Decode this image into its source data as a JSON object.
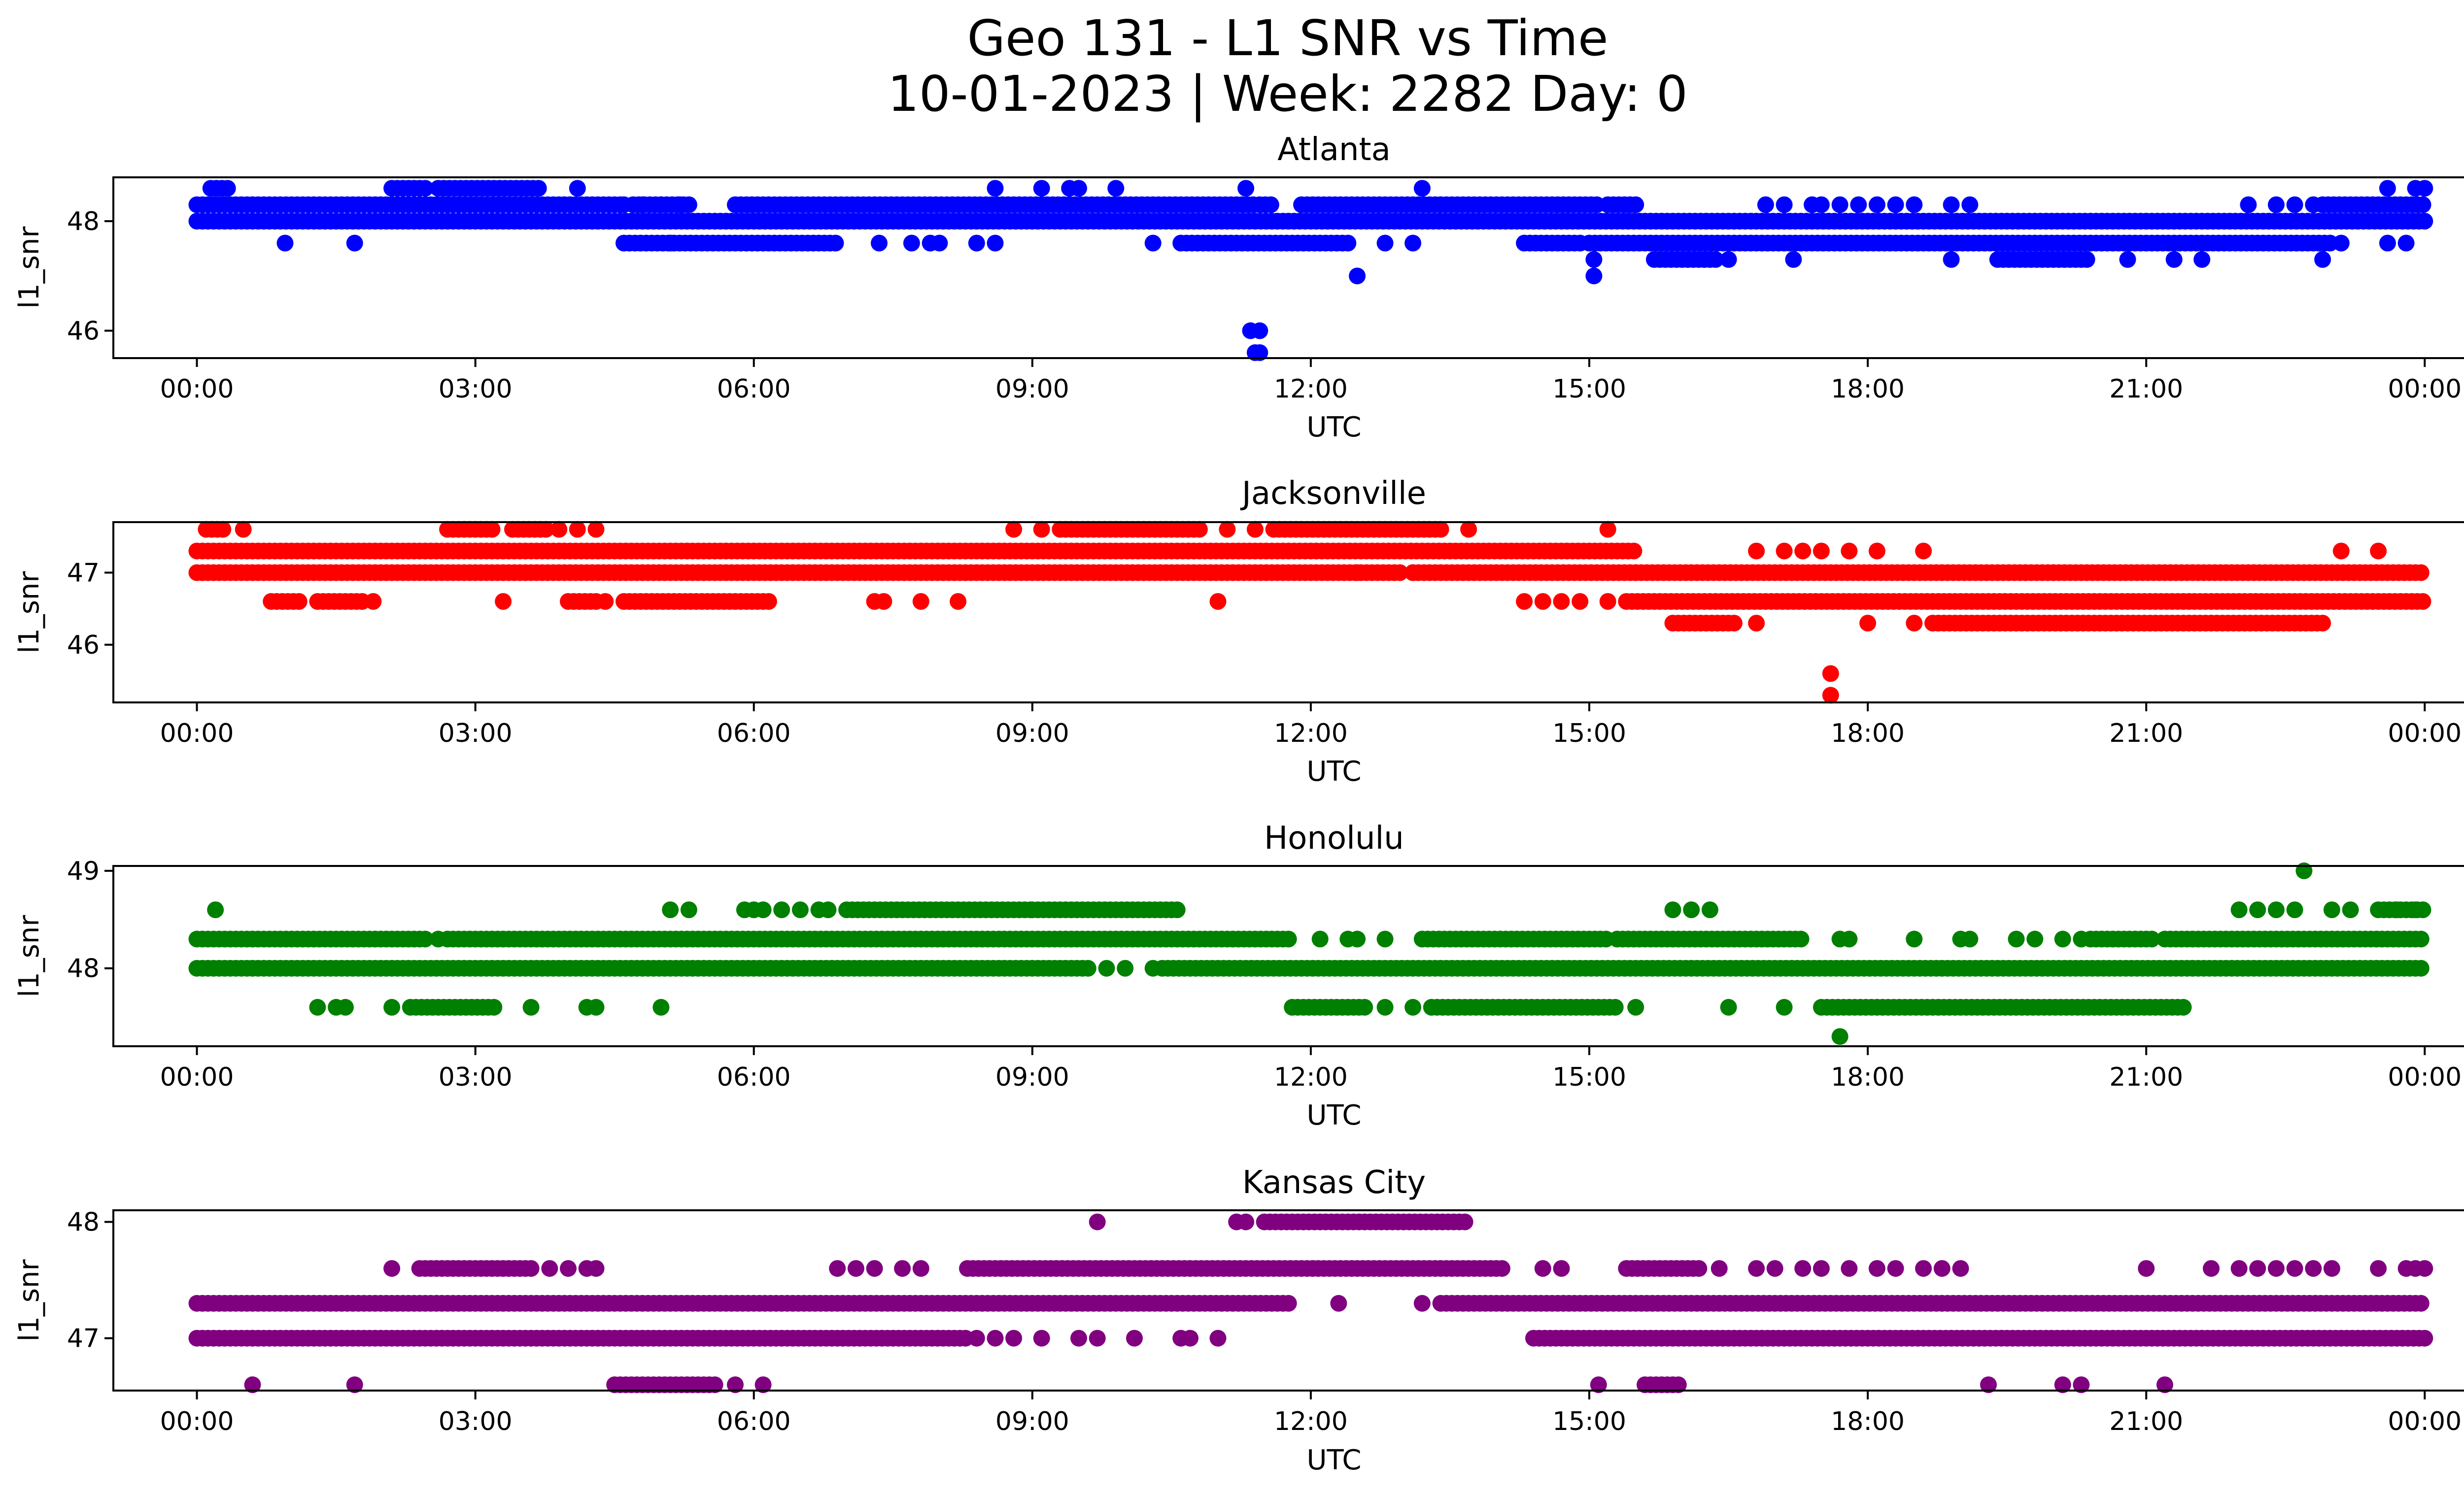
{
  "figure": {
    "title_line1": "Geo 131 - L1 SNR vs Time",
    "title_line2": "10-01-2023 | Week: 2282 Day: 0"
  },
  "chart_data": [
    {
      "type": "scatter",
      "title": "Atlanta",
      "xlabel": "UTC",
      "ylabel": "l1_snr",
      "color": "#0000ff",
      "xlim_hours": [
        -0.9,
        25.4
      ],
      "ylim": [
        45.5,
        48.8
      ],
      "xticks": [
        "00:00",
        "03:00",
        "06:00",
        "09:00",
        "12:00",
        "15:00",
        "18:00",
        "21:00",
        "00:00"
      ],
      "yticks": [
        46,
        48
      ],
      "bands": [
        {
          "y": 48.0,
          "ranges": [
            [
              0,
              24
            ]
          ]
        },
        {
          "y": 48.3,
          "ranges": [
            [
              0,
              4.6
            ],
            [
              4.7,
              5.3
            ],
            [
              5.8,
              11.4
            ],
            [
              11.45,
              11.6
            ],
            [
              11.9,
              15.1
            ],
            [
              15.2,
              15.5
            ],
            [
              22.9,
              24
            ]
          ]
        },
        {
          "y": 47.6,
          "ranges": [
            [
              4.6,
              6.9
            ],
            [
              10.6,
              12.4
            ],
            [
              14.3,
              14.9
            ],
            [
              15.0,
              23.0
            ]
          ]
        },
        {
          "y": 48.6,
          "ranges": [
            [
              0.15,
              0.35
            ],
            [
              2.1,
              2.5
            ],
            [
              2.6,
              3.7
            ]
          ]
        },
        {
          "y": 47.3,
          "ranges": [
            [
              15.7,
              16.4
            ],
            [
              19.4,
              20.4
            ]
          ]
        }
      ],
      "points": [
        [
          0.95,
          47.6
        ],
        [
          1.7,
          47.6
        ],
        [
          4.1,
          48.6
        ],
        [
          4.6,
          48.3
        ],
        [
          4.8,
          48.3
        ],
        [
          5.0,
          48.3
        ],
        [
          5.2,
          48.3
        ],
        [
          5.1,
          47.6
        ],
        [
          7.35,
          47.6
        ],
        [
          7.7,
          47.6
        ],
        [
          7.9,
          47.6
        ],
        [
          8.0,
          47.6
        ],
        [
          8.4,
          47.6
        ],
        [
          8.6,
          47.6
        ],
        [
          8.6,
          48.6
        ],
        [
          9.1,
          48.6
        ],
        [
          9.4,
          48.6
        ],
        [
          9.5,
          48.6
        ],
        [
          9.9,
          48.6
        ],
        [
          10.3,
          47.6
        ],
        [
          11.3,
          48.6
        ],
        [
          11.35,
          46.0
        ],
        [
          11.45,
          46.0
        ],
        [
          11.4,
          45.6
        ],
        [
          11.45,
          45.6
        ],
        [
          12.5,
          47.0
        ],
        [
          12.8,
          47.6
        ],
        [
          13.1,
          47.6
        ],
        [
          13.2,
          48.6
        ],
        [
          15.05,
          47.3
        ],
        [
          15.05,
          47.0
        ],
        [
          16.5,
          47.3
        ],
        [
          16.9,
          48.3
        ],
        [
          17.1,
          48.3
        ],
        [
          17.2,
          47.3
        ],
        [
          17.4,
          48.3
        ],
        [
          17.5,
          48.3
        ],
        [
          17.7,
          48.3
        ],
        [
          17.9,
          48.3
        ],
        [
          18.1,
          48.3
        ],
        [
          18.3,
          48.3
        ],
        [
          18.5,
          48.3
        ],
        [
          18.9,
          48.3
        ],
        [
          18.9,
          47.3
        ],
        [
          19.1,
          48.3
        ],
        [
          20.8,
          47.3
        ],
        [
          21.3,
          47.3
        ],
        [
          21.6,
          47.3
        ],
        [
          22.1,
          48.3
        ],
        [
          22.4,
          48.3
        ],
        [
          22.6,
          48.3
        ],
        [
          22.8,
          48.3
        ],
        [
          22.9,
          47.3
        ],
        [
          23.1,
          47.6
        ],
        [
          23.6,
          48.6
        ],
        [
          23.9,
          48.6
        ],
        [
          24.0,
          48.6
        ],
        [
          23.6,
          47.6
        ],
        [
          23.8,
          47.6
        ]
      ]
    },
    {
      "type": "scatter",
      "title": "Jacksonville",
      "xlabel": "UTC",
      "ylabel": "l1_snr",
      "color": "#ff0000",
      "xlim_hours": [
        -0.9,
        25.4
      ],
      "ylim": [
        45.2,
        47.7
      ],
      "xticks": [
        "00:00",
        "03:00",
        "06:00",
        "09:00",
        "12:00",
        "15:00",
        "18:00",
        "21:00",
        "00:00"
      ],
      "yticks": [
        46,
        47
      ],
      "bands": [
        {
          "y": 47.3,
          "ranges": [
            [
              0,
              15.5
            ]
          ]
        },
        {
          "y": 47.0,
          "ranges": [
            [
              0,
              13.0
            ],
            [
              13.1,
              15.5
            ],
            [
              15.5,
              24
            ]
          ]
        },
        {
          "y": 46.6,
          "ranges": [
            [
              0.8,
              1.1
            ],
            [
              1.3,
              1.8
            ],
            [
              4.0,
              4.3
            ],
            [
              4.6,
              6.2
            ],
            [
              15.4,
              24
            ]
          ]
        },
        {
          "y": 47.6,
          "ranges": [
            [
              0.1,
              0.3
            ],
            [
              2.7,
              3.2
            ],
            [
              3.4,
              3.8
            ],
            [
              9.3,
              10.8
            ],
            [
              11.6,
              13.4
            ]
          ]
        },
        {
          "y": 46.3,
          "ranges": [
            [
              15.9,
              16.6
            ],
            [
              18.7,
              22.9
            ]
          ]
        }
      ],
      "points": [
        [
          0.5,
          47.6
        ],
        [
          1.9,
          46.6
        ],
        [
          3.3,
          46.6
        ],
        [
          3.9,
          47.6
        ],
        [
          4.1,
          47.6
        ],
        [
          4.3,
          47.6
        ],
        [
          4.4,
          46.6
        ],
        [
          7.3,
          46.6
        ],
        [
          7.4,
          46.6
        ],
        [
          7.8,
          46.6
        ],
        [
          8.2,
          46.6
        ],
        [
          8.8,
          47.6
        ],
        [
          9.1,
          47.6
        ],
        [
          11.0,
          46.6
        ],
        [
          11.1,
          47.6
        ],
        [
          11.4,
          47.6
        ],
        [
          12.5,
          47.0
        ],
        [
          13.1,
          47.0
        ],
        [
          13.7,
          47.6
        ],
        [
          14.3,
          46.6
        ],
        [
          14.5,
          46.6
        ],
        [
          14.7,
          46.6
        ],
        [
          14.9,
          46.6
        ],
        [
          15.2,
          46.6
        ],
        [
          15.2,
          47.6
        ],
        [
          16.8,
          46.3
        ],
        [
          16.8,
          47.3
        ],
        [
          17.1,
          47.3
        ],
        [
          17.3,
          47.3
        ],
        [
          17.5,
          47.3
        ],
        [
          17.6,
          45.6
        ],
        [
          17.6,
          45.3
        ],
        [
          17.8,
          47.3
        ],
        [
          18.0,
          46.3
        ],
        [
          18.1,
          47.3
        ],
        [
          18.5,
          46.3
        ],
        [
          18.6,
          47.3
        ],
        [
          19.7,
          47.0
        ],
        [
          20.0,
          47.0
        ],
        [
          23.1,
          47.3
        ],
        [
          23.5,
          47.3
        ]
      ]
    },
    {
      "type": "scatter",
      "title": "Honolulu",
      "xlabel": "UTC",
      "ylabel": "l1_snr",
      "color": "#008000",
      "xlim_hours": [
        -0.9,
        25.4
      ],
      "ylim": [
        47.2,
        49.05
      ],
      "xticks": [
        "00:00",
        "03:00",
        "06:00",
        "09:00",
        "12:00",
        "15:00",
        "18:00",
        "21:00",
        "00:00"
      ],
      "yticks": [
        48,
        49
      ],
      "bands": [
        {
          "y": 48.3,
          "ranges": [
            [
              0,
              2.5
            ],
            [
              2.7,
              11.8
            ],
            [
              13.2,
              15.2
            ],
            [
              15.3,
              17.3
            ],
            [
              20.4,
              21.1
            ],
            [
              21.2,
              24
            ]
          ]
        },
        {
          "y": 48.0,
          "ranges": [
            [
              0,
              9.6
            ],
            [
              10.4,
              24
            ]
          ]
        },
        {
          "y": 47.6,
          "ranges": [
            [
              2.3,
              3.2
            ],
            [
              11.8,
              12.6
            ],
            [
              13.3,
              15.3
            ],
            [
              17.5,
              21.4
            ]
          ]
        },
        {
          "y": 48.6,
          "ranges": [
            [
              7.0,
              9.0
            ],
            [
              9.0,
              10.6
            ],
            [
              23.5,
              24.0
            ]
          ]
        }
      ],
      "points": [
        [
          0.2,
          48.6
        ],
        [
          1.3,
          47.6
        ],
        [
          1.5,
          47.6
        ],
        [
          1.6,
          47.6
        ],
        [
          2.1,
          47.6
        ],
        [
          2.6,
          48.3
        ],
        [
          3.6,
          47.6
        ],
        [
          4.2,
          47.6
        ],
        [
          4.3,
          47.6
        ],
        [
          5.0,
          47.6
        ],
        [
          5.1,
          48.6
        ],
        [
          5.3,
          48.6
        ],
        [
          5.9,
          48.6
        ],
        [
          6.0,
          48.6
        ],
        [
          6.1,
          48.6
        ],
        [
          6.3,
          48.6
        ],
        [
          6.5,
          48.6
        ],
        [
          6.7,
          48.6
        ],
        [
          6.8,
          48.6
        ],
        [
          9.8,
          48.0
        ],
        [
          10.0,
          48.0
        ],
        [
          10.3,
          48.0
        ],
        [
          12.1,
          48.3
        ],
        [
          12.4,
          48.3
        ],
        [
          12.5,
          48.3
        ],
        [
          12.8,
          48.3
        ],
        [
          12.8,
          47.6
        ],
        [
          13.1,
          47.6
        ],
        [
          15.5,
          47.6
        ],
        [
          15.9,
          48.6
        ],
        [
          16.1,
          48.6
        ],
        [
          16.3,
          48.6
        ],
        [
          16.5,
          47.6
        ],
        [
          17.1,
          47.6
        ],
        [
          17.7,
          48.3
        ],
        [
          17.8,
          48.3
        ],
        [
          17.7,
          47.3
        ],
        [
          18.5,
          48.3
        ],
        [
          19.0,
          48.3
        ],
        [
          19.1,
          48.3
        ],
        [
          19.6,
          48.3
        ],
        [
          19.8,
          48.3
        ],
        [
          20.1,
          48.3
        ],
        [
          20.3,
          48.3
        ],
        [
          22.0,
          48.6
        ],
        [
          22.2,
          48.6
        ],
        [
          22.4,
          48.6
        ],
        [
          22.6,
          48.6
        ],
        [
          22.7,
          49.0
        ],
        [
          23.0,
          48.6
        ],
        [
          23.2,
          48.6
        ],
        [
          23.7,
          48.6
        ],
        [
          23.9,
          48.6
        ]
      ]
    },
    {
      "type": "scatter",
      "title": "Kansas City",
      "xlabel": "UTC",
      "ylabel": "l1_snr",
      "color": "#800080",
      "xlim_hours": [
        -0.9,
        25.4
      ],
      "ylim": [
        46.55,
        48.1
      ],
      "xticks": [
        "00:00",
        "03:00",
        "06:00",
        "09:00",
        "12:00",
        "15:00",
        "18:00",
        "21:00",
        "00:00"
      ],
      "yticks": [
        47,
        48
      ],
      "bands": [
        {
          "y": 47.3,
          "ranges": [
            [
              0,
              11.8
            ],
            [
              13.4,
              24
            ]
          ]
        },
        {
          "y": 47.0,
          "ranges": [
            [
              0,
              8.3
            ],
            [
              14.4,
              24
            ]
          ]
        },
        {
          "y": 47.6,
          "ranges": [
            [
              2.4,
              3.6
            ],
            [
              8.3,
              14.1
            ],
            [
              15.4,
              16.2
            ]
          ]
        },
        {
          "y": 48.0,
          "ranges": [
            [
              11.5,
              13.7
            ]
          ]
        },
        {
          "y": 46.6,
          "ranges": [
            [
              4.5,
              5.6
            ],
            [
              15.6,
              16.0
            ]
          ]
        }
      ],
      "points": [
        [
          0.6,
          46.6
        ],
        [
          1.7,
          46.6
        ],
        [
          2.1,
          47.6
        ],
        [
          3.8,
          47.6
        ],
        [
          4.0,
          47.6
        ],
        [
          4.2,
          47.6
        ],
        [
          4.3,
          47.6
        ],
        [
          5.8,
          46.6
        ],
        [
          6.1,
          46.6
        ],
        [
          6.9,
          47.6
        ],
        [
          7.1,
          47.6
        ],
        [
          7.3,
          47.6
        ],
        [
          7.6,
          47.6
        ],
        [
          7.8,
          47.6
        ],
        [
          8.4,
          47.0
        ],
        [
          8.6,
          47.0
        ],
        [
          8.8,
          47.0
        ],
        [
          9.1,
          47.0
        ],
        [
          9.5,
          47.0
        ],
        [
          9.7,
          47.0
        ],
        [
          9.7,
          48.0
        ],
        [
          10.1,
          47.0
        ],
        [
          10.6,
          47.0
        ],
        [
          10.7,
          47.0
        ],
        [
          11.0,
          47.0
        ],
        [
          11.2,
          48.0
        ],
        [
          11.3,
          48.0
        ],
        [
          12.3,
          47.3
        ],
        [
          13.2,
          47.3
        ],
        [
          14.5,
          47.6
        ],
        [
          14.7,
          47.6
        ],
        [
          15.1,
          46.6
        ],
        [
          16.4,
          47.6
        ],
        [
          16.8,
          47.6
        ],
        [
          17.0,
          47.6
        ],
        [
          17.3,
          47.6
        ],
        [
          17.5,
          47.6
        ],
        [
          17.8,
          47.6
        ],
        [
          18.1,
          47.6
        ],
        [
          18.3,
          47.6
        ],
        [
          18.6,
          47.6
        ],
        [
          18.8,
          47.6
        ],
        [
          19.0,
          47.6
        ],
        [
          19.3,
          46.6
        ],
        [
          20.1,
          46.6
        ],
        [
          20.3,
          46.6
        ],
        [
          21.0,
          47.6
        ],
        [
          21.2,
          46.6
        ],
        [
          21.7,
          47.6
        ],
        [
          22.0,
          47.6
        ],
        [
          22.2,
          47.6
        ],
        [
          22.4,
          47.6
        ],
        [
          22.6,
          47.6
        ],
        [
          22.8,
          47.6
        ],
        [
          23.0,
          47.6
        ],
        [
          23.5,
          47.6
        ],
        [
          23.8,
          47.6
        ],
        [
          23.9,
          47.6
        ],
        [
          24.0,
          47.6
        ]
      ]
    }
  ]
}
